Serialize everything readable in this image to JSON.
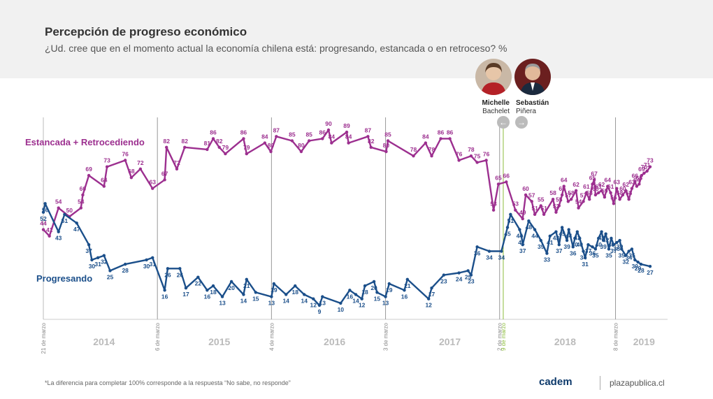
{
  "presidents": [
    {
      "first": "Michelle",
      "last": "Bachelet"
    },
    {
      "first": "Sebastián",
      "last": "Piñera"
    }
  ],
  "footnote": "*La diferencia para completar 100% corresponde a la respuesta “No sabe, no responde”",
  "brand": {
    "logo": "cadem",
    "site": "plazapublica.cl"
  },
  "chart_data": {
    "type": "line",
    "title": "Percepción de progreso económico",
    "subtitle": "¿Ud. cree que en el momento actual la economía chilena está: progresando, estancada o en retroceso? %",
    "x_range": [
      0,
      100
    ],
    "y_range": [
      0,
      100
    ],
    "years": [
      {
        "label": "2014",
        "x": 10
      },
      {
        "label": "2015",
        "x": 29
      },
      {
        "label": "2016",
        "x": 48
      },
      {
        "label": "2017",
        "x": 67
      },
      {
        "label": "2018",
        "x": 86
      },
      {
        "label": "2019",
        "x": 99
      }
    ],
    "vlines": [
      {
        "label": "21 de marzo",
        "x": 0,
        "color": "#bbbbbb"
      },
      {
        "label": "6 de marzo",
        "x": 18.8,
        "color": "#999999"
      },
      {
        "label": "4 de marzo",
        "x": 37.6,
        "color": "#999999"
      },
      {
        "label": "3 de marzo",
        "x": 56.4,
        "color": "#999999"
      },
      {
        "label": "2 de marzo",
        "x": 75.2,
        "color": "#999999"
      },
      {
        "label": "9 de marzo",
        "x": 75.8,
        "color": "#8cbc3c"
      },
      {
        "label": "8 de marzo",
        "x": 94.3,
        "color": "#999999"
      }
    ],
    "series": [
      {
        "name": "Estancada + Retrocediendo",
        "color": "#9c2f8f",
        "points": [
          {
            "x": 0,
            "y": 44,
            "label": "44"
          },
          {
            "x": 1,
            "y": 41,
            "label": "41"
          },
          {
            "x": 2.5,
            "y": 54,
            "label": "54"
          },
          {
            "x": 4.3,
            "y": 50,
            "label": "50"
          },
          {
            "x": 6.2,
            "y": 54,
            "label": "54"
          },
          {
            "x": 6.5,
            "y": 60,
            "label": "60"
          },
          {
            "x": 7.5,
            "y": 69,
            "label": "69"
          },
          {
            "x": 10,
            "y": 64,
            "label": "64"
          },
          {
            "x": 10.5,
            "y": 73,
            "label": "73"
          },
          {
            "x": 13.5,
            "y": 76,
            "label": "76"
          },
          {
            "x": 14.5,
            "y": 68,
            "label": "68"
          },
          {
            "x": 16,
            "y": 72,
            "label": "72"
          },
          {
            "x": 18,
            "y": 63,
            "label": "63"
          },
          {
            "x": 20,
            "y": 67,
            "label": "67"
          },
          {
            "x": 20.3,
            "y": 82,
            "label": "82"
          },
          {
            "x": 22,
            "y": 72,
            "label": "72"
          },
          {
            "x": 23.3,
            "y": 82,
            "label": "82"
          },
          {
            "x": 27,
            "y": 81,
            "label": "81"
          },
          {
            "x": 28,
            "y": 86,
            "label": "86"
          },
          {
            "x": 29,
            "y": 82,
            "label": "82"
          },
          {
            "x": 30,
            "y": 79,
            "label": "79"
          },
          {
            "x": 33,
            "y": 86,
            "label": "86"
          },
          {
            "x": 33.5,
            "y": 79,
            "label": "79"
          },
          {
            "x": 36.5,
            "y": 84,
            "label": "84"
          },
          {
            "x": 37.5,
            "y": 80,
            "label": "80"
          },
          {
            "x": 38.4,
            "y": 87,
            "label": "87"
          },
          {
            "x": 41,
            "y": 85,
            "label": "85"
          },
          {
            "x": 42.5,
            "y": 80,
            "label": "80"
          },
          {
            "x": 43.8,
            "y": 85,
            "label": "85"
          },
          {
            "x": 46,
            "y": 86,
            "label": "86"
          },
          {
            "x": 47,
            "y": 90,
            "label": "90"
          },
          {
            "x": 47.5,
            "y": 84,
            "label": "84"
          },
          {
            "x": 50,
            "y": 89,
            "label": "89"
          },
          {
            "x": 50.3,
            "y": 84,
            "label": "84"
          },
          {
            "x": 53.5,
            "y": 87,
            "label": "87"
          },
          {
            "x": 54,
            "y": 82,
            "label": "82"
          },
          {
            "x": 56.5,
            "y": 80,
            "label": "80"
          },
          {
            "x": 56.8,
            "y": 85,
            "label": "85"
          },
          {
            "x": 61,
            "y": 78,
            "label": "78"
          },
          {
            "x": 63,
            "y": 84,
            "label": "84"
          },
          {
            "x": 64,
            "y": 78,
            "label": "78"
          },
          {
            "x": 65.5,
            "y": 86,
            "label": "86"
          },
          {
            "x": 67,
            "y": 86,
            "label": "86"
          },
          {
            "x": 68.5,
            "y": 76,
            "label": "76"
          },
          {
            "x": 70.5,
            "y": 78,
            "label": "78"
          },
          {
            "x": 71.5,
            "y": 75,
            "label": "75"
          },
          {
            "x": 73,
            "y": 76,
            "label": "76"
          },
          {
            "x": 74.2,
            "y": 53,
            "label": "53"
          },
          {
            "x": 75,
            "y": 65,
            "label": "65"
          },
          {
            "x": 76.3,
            "y": 66,
            "label": "66"
          },
          {
            "x": 77.8,
            "y": 53,
            "label": "53"
          },
          {
            "x": 79,
            "y": 49,
            "label": "49"
          },
          {
            "x": 79.5,
            "y": 60,
            "label": "60"
          },
          {
            "x": 80.5,
            "y": 57,
            "label": "57"
          },
          {
            "x": 81,
            "y": 51,
            "label": "51"
          },
          {
            "x": 82,
            "y": 55,
            "label": "55"
          },
          {
            "x": 82.5,
            "y": 51,
            "label": "51"
          },
          {
            "x": 84,
            "y": 58,
            "label": "58"
          },
          {
            "x": 84.5,
            "y": 52,
            "label": "52"
          },
          {
            "x": 85,
            "y": 55,
            "label": "55"
          },
          {
            "x": 85.5,
            "y": 60,
            "label": "60"
          },
          {
            "x": 85.8,
            "y": 64,
            "label": "64"
          },
          {
            "x": 86.5,
            "y": 57,
            "label": "57"
          },
          {
            "x": 87,
            "y": 58,
            "label": "58"
          },
          {
            "x": 87.8,
            "y": 62,
            "label": "62"
          },
          {
            "x": 88.2,
            "y": 54,
            "label": "54"
          },
          {
            "x": 89,
            "y": 57,
            "label": "57"
          },
          {
            "x": 89.5,
            "y": 61,
            "label": "61"
          },
          {
            "x": 90,
            "y": 58,
            "label": "58"
          },
          {
            "x": 90.5,
            "y": 65,
            "label": "65"
          },
          {
            "x": 90.8,
            "y": 67,
            "label": "67"
          },
          {
            "x": 91,
            "y": 60,
            "label": "60"
          },
          {
            "x": 91.5,
            "y": 61,
            "label": "61"
          },
          {
            "x": 92,
            "y": 62,
            "label": "62"
          },
          {
            "x": 92.5,
            "y": 59,
            "label": "59"
          },
          {
            "x": 93,
            "y": 64,
            "label": "64"
          },
          {
            "x": 93.5,
            "y": 61,
            "label": "61"
          },
          {
            "x": 94,
            "y": 56,
            "label": "56"
          },
          {
            "x": 94.5,
            "y": 63,
            "label": "63"
          },
          {
            "x": 95,
            "y": 58,
            "label": "58"
          },
          {
            "x": 95.5,
            "y": 60,
            "label": "60"
          },
          {
            "x": 96,
            "y": 62,
            "label": "62"
          },
          {
            "x": 96.5,
            "y": 58,
            "label": "58"
          },
          {
            "x": 97,
            "y": 63,
            "label": "63"
          },
          {
            "x": 97.5,
            "y": 66,
            "label": "66"
          },
          {
            "x": 97.8,
            "y": 64,
            "label": "64"
          },
          {
            "x": 98.2,
            "y": 65,
            "label": "65"
          },
          {
            "x": 98.6,
            "y": 69,
            "label": "69"
          },
          {
            "x": 99,
            "y": 70,
            "label": "70"
          },
          {
            "x": 99.5,
            "y": 71,
            "label": "71"
          },
          {
            "x": 100,
            "y": 73,
            "label": "73"
          }
        ]
      },
      {
        "name": "Progresando",
        "color": "#1b4f8a",
        "points": [
          {
            "x": 0,
            "y": 52,
            "label": "52"
          },
          {
            "x": 0.3,
            "y": 56,
            "label": "56"
          },
          {
            "x": 2.5,
            "y": 43,
            "label": "43"
          },
          {
            "x": 3.5,
            "y": 51,
            "label": "51"
          },
          {
            "x": 5.5,
            "y": 47,
            "label": "47"
          },
          {
            "x": 7.5,
            "y": 37,
            "label": "37"
          },
          {
            "x": 8,
            "y": 30,
            "label": "30"
          },
          {
            "x": 9,
            "y": 31,
            "label": "31"
          },
          {
            "x": 10,
            "y": 32,
            "label": "32"
          },
          {
            "x": 11,
            "y": 25,
            "label": "25"
          },
          {
            "x": 13.5,
            "y": 28,
            "label": "28"
          },
          {
            "x": 17,
            "y": 30,
            "label": "30"
          },
          {
            "x": 18,
            "y": 31,
            "label": "31"
          },
          {
            "x": 20,
            "y": 16,
            "label": "16"
          },
          {
            "x": 20.5,
            "y": 26,
            "label": "26"
          },
          {
            "x": 22.5,
            "y": 26,
            "label": "26"
          },
          {
            "x": 23.5,
            "y": 17,
            "label": "17"
          },
          {
            "x": 25.5,
            "y": 22,
            "label": "22"
          },
          {
            "x": 27,
            "y": 16,
            "label": "16"
          },
          {
            "x": 28,
            "y": 18,
            "label": "18"
          },
          {
            "x": 29.5,
            "y": 13,
            "label": "13"
          },
          {
            "x": 31,
            "y": 20,
            "label": "20"
          },
          {
            "x": 33,
            "y": 14,
            "label": "14"
          },
          {
            "x": 33.5,
            "y": 21,
            "label": "21"
          },
          {
            "x": 35,
            "y": 15,
            "label": "15"
          },
          {
            "x": 37.6,
            "y": 13,
            "label": "13"
          },
          {
            "x": 38,
            "y": 19,
            "label": "19"
          },
          {
            "x": 40,
            "y": 14,
            "label": "14"
          },
          {
            "x": 41.5,
            "y": 18,
            "label": "18"
          },
          {
            "x": 43,
            "y": 14,
            "label": "14"
          },
          {
            "x": 44.5,
            "y": 12,
            "label": "12"
          },
          {
            "x": 45.5,
            "y": 9,
            "label": "9"
          },
          {
            "x": 46,
            "y": 13,
            "label": "13"
          },
          {
            "x": 49,
            "y": 10,
            "label": "10"
          },
          {
            "x": 50.5,
            "y": 16,
            "label": "16"
          },
          {
            "x": 51.5,
            "y": 14,
            "label": "14"
          },
          {
            "x": 52.5,
            "y": 12,
            "label": "12"
          },
          {
            "x": 53,
            "y": 18,
            "label": "18"
          },
          {
            "x": 54.5,
            "y": 20,
            "label": "20"
          },
          {
            "x": 55,
            "y": 15,
            "label": "15"
          },
          {
            "x": 56.4,
            "y": 13,
            "label": "13"
          },
          {
            "x": 57,
            "y": 19,
            "label": "19"
          },
          {
            "x": 59.5,
            "y": 16,
            "label": "16"
          },
          {
            "x": 60,
            "y": 21,
            "label": "21"
          },
          {
            "x": 63.5,
            "y": 12,
            "label": "12"
          },
          {
            "x": 64,
            "y": 17,
            "label": "17"
          },
          {
            "x": 66,
            "y": 23,
            "label": "23"
          },
          {
            "x": 68.5,
            "y": 24,
            "label": "24"
          },
          {
            "x": 70,
            "y": 25,
            "label": "25"
          },
          {
            "x": 70.5,
            "y": 23,
            "label": "23"
          },
          {
            "x": 71.5,
            "y": 36,
            "label": "36"
          },
          {
            "x": 73.5,
            "y": 34,
            "label": "34"
          },
          {
            "x": 75.5,
            "y": 34,
            "label": "34"
          },
          {
            "x": 76.5,
            "y": 45,
            "label": "45"
          },
          {
            "x": 77,
            "y": 51,
            "label": "51"
          },
          {
            "x": 78.5,
            "y": 44,
            "label": "44"
          },
          {
            "x": 78.8,
            "y": 41,
            "label": "41"
          },
          {
            "x": 79,
            "y": 37,
            "label": "37"
          },
          {
            "x": 80,
            "y": 48,
            "label": "48"
          },
          {
            "x": 81,
            "y": 44,
            "label": "44"
          },
          {
            "x": 82,
            "y": 39,
            "label": "39"
          },
          {
            "x": 83,
            "y": 33,
            "label": "33"
          },
          {
            "x": 83.5,
            "y": 41,
            "label": "41"
          },
          {
            "x": 84.5,
            "y": 43,
            "label": "43"
          },
          {
            "x": 85,
            "y": 37,
            "label": "37"
          },
          {
            "x": 85.5,
            "y": 45,
            "label": "45"
          },
          {
            "x": 86.3,
            "y": 39,
            "label": "39"
          },
          {
            "x": 86.6,
            "y": 44,
            "label": "44"
          },
          {
            "x": 87.3,
            "y": 36,
            "label": "36"
          },
          {
            "x": 87.6,
            "y": 40,
            "label": "40"
          },
          {
            "x": 88,
            "y": 43,
            "label": "43"
          },
          {
            "x": 88.4,
            "y": 40,
            "label": "40"
          },
          {
            "x": 89,
            "y": 34,
            "label": "34"
          },
          {
            "x": 89.3,
            "y": 31,
            "label": "31"
          },
          {
            "x": 89.8,
            "y": 37,
            "label": "37"
          },
          {
            "x": 90.5,
            "y": 36,
            "label": "36"
          },
          {
            "x": 91,
            "y": 35,
            "label": "35"
          },
          {
            "x": 91.5,
            "y": 40,
            "label": "40"
          },
          {
            "x": 92,
            "y": 43,
            "label": "43"
          },
          {
            "x": 92.3,
            "y": 39,
            "label": "39"
          },
          {
            "x": 92.7,
            "y": 42,
            "label": "42"
          },
          {
            "x": 93.2,
            "y": 35,
            "label": "35"
          },
          {
            "x": 93.6,
            "y": 40,
            "label": "40"
          },
          {
            "x": 94,
            "y": 37,
            "label": "37"
          },
          {
            "x": 94.5,
            "y": 38,
            "label": "38"
          },
          {
            "x": 95,
            "y": 39,
            "label": "39"
          },
          {
            "x": 95.3,
            "y": 35,
            "label": "35"
          },
          {
            "x": 96,
            "y": 32,
            "label": "32"
          },
          {
            "x": 96.5,
            "y": 34,
            "label": "34"
          },
          {
            "x": 97,
            "y": 35,
            "label": "35"
          },
          {
            "x": 97.5,
            "y": 30,
            "label": "30"
          },
          {
            "x": 98,
            "y": 29,
            "label": "29"
          },
          {
            "x": 98.5,
            "y": 28,
            "label": "28"
          },
          {
            "x": 100,
            "y": 27,
            "label": "27"
          }
        ]
      }
    ]
  }
}
